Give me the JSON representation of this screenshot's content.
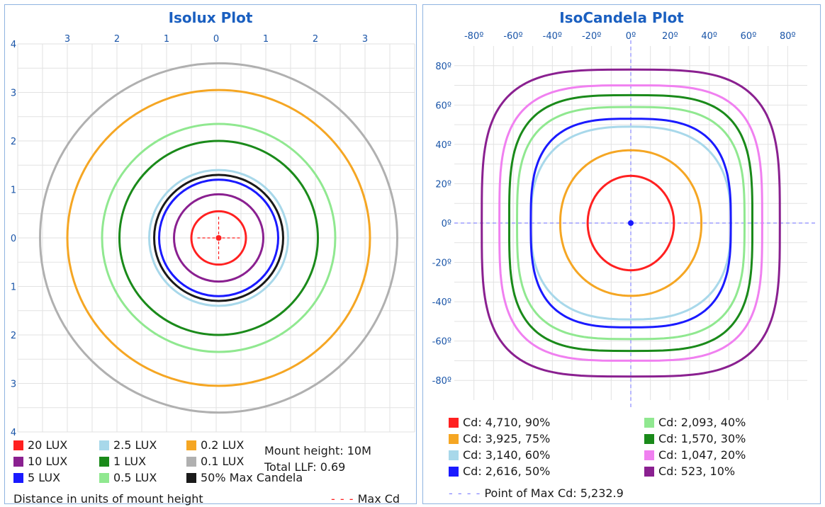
{
  "chart_data": [
    {
      "type": "contour",
      "title": "Isolux Plot",
      "xaxis_ticks": [
        "3",
        "2",
        "1",
        "0",
        "1",
        "2",
        "3"
      ],
      "yaxis_ticks": [
        "4",
        "3",
        "2",
        "1",
        "0",
        "1",
        "2",
        "3",
        "4"
      ],
      "xlim": [
        -4,
        4
      ],
      "ylim": [
        -4,
        4
      ],
      "grid": true,
      "center": [
        0.05,
        0
      ],
      "series": [
        {
          "name": "20 LUX",
          "color": "#ff2020",
          "radius": 0.55
        },
        {
          "name": "10 LUX",
          "color": "#8a2090",
          "radius": 0.9
        },
        {
          "name": "5 LUX",
          "color": "#1a1aff",
          "radius": 1.2
        },
        {
          "name": "2.5 LUX",
          "color": "#a8d8ea",
          "radius": 1.4
        },
        {
          "name": "1 LUX",
          "color": "#1a8a1a",
          "radius": 2.0
        },
        {
          "name": "0.5 LUX",
          "color": "#90e890",
          "radius": 2.35
        },
        {
          "name": "0.2 LUX",
          "color": "#f5a623",
          "radius": 3.05
        },
        {
          "name": "0.1 LUX",
          "color": "#b0b0b0",
          "radius": 3.6
        },
        {
          "name": "50% Max Candela",
          "color": "#1a1a1a",
          "radius": 1.3
        }
      ],
      "max_point": [
        0.05,
        0
      ],
      "max_label": "Max Cd",
      "xlabel": "Distance in units of mount height",
      "notes": [
        "Mount height: 10M",
        "Total LLF: 0.69"
      ]
    },
    {
      "type": "contour",
      "title": "IsoCandela Plot",
      "xaxis_ticks": [
        "-80º",
        "-60º",
        "-40º",
        "-20º",
        "0º",
        "20º",
        "40º",
        "60º",
        "80º"
      ],
      "yaxis_ticks": [
        "80º",
        "60º",
        "40º",
        "20º",
        "0º",
        "-20º",
        "-40º",
        "-60º",
        "-80º"
      ],
      "xlim": [
        -90,
        90
      ],
      "ylim": [
        -90,
        90
      ],
      "grid": true,
      "series": [
        {
          "name": "Cd: 4,710, 90%",
          "color": "#ff2020",
          "rx": 22,
          "ry": 24,
          "exp": 2.0
        },
        {
          "name": "Cd: 3,925, 75%",
          "color": "#f5a623",
          "rx": 36,
          "ry": 37,
          "exp": 2.1
        },
        {
          "name": "Cd: 3,140, 60%",
          "color": "#a8d8ea",
          "rx": 51,
          "ry": 49,
          "exp": 2.6
        },
        {
          "name": "Cd: 2,616, 50%",
          "color": "#1a1aff",
          "rx": 51,
          "ry": 53,
          "exp": 3.0
        },
        {
          "name": "Cd: 2,093, 40%",
          "color": "#90e890",
          "rx": 58,
          "ry": 59,
          "exp": 3.2
        },
        {
          "name": "Cd: 1,570, 30%",
          "color": "#1a8a1a",
          "rx": 62,
          "ry": 65,
          "exp": 3.4
        },
        {
          "name": "Cd: 1,047, 20%",
          "color": "#f080f0",
          "rx": 67,
          "ry": 70,
          "exp": 3.5
        },
        {
          "name": "Cd: 523, 10%",
          "color": "#8a2090",
          "rx": 76,
          "ry": 78,
          "exp": 3.6
        }
      ],
      "max_point": [
        0,
        0
      ],
      "max_label": "Point of Max Cd: 5,232.9"
    }
  ]
}
